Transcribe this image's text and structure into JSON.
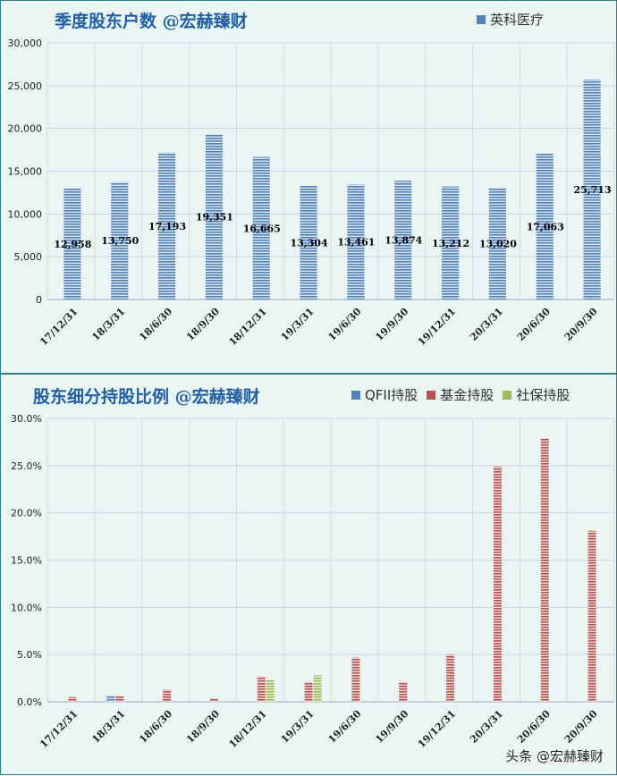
{
  "colors": {
    "blue": "#4f81bd",
    "red": "#c0504d",
    "green": "#9bbb59",
    "title": "#1f5fa8"
  },
  "chart_data": [
    {
      "type": "bar",
      "title": "季度股东户数 @宏赫臻财",
      "categories": [
        "17/12/31",
        "18/3/31",
        "18/6/30",
        "18/9/30",
        "18/12/31",
        "19/3/31",
        "19/6/30",
        "19/9/30",
        "19/12/31",
        "20/3/31",
        "20/6/30",
        "20/9/30"
      ],
      "series": [
        {
          "name": "英科医疗",
          "values": [
            12958,
            13750,
            17193,
            19351,
            16665,
            13304,
            13461,
            13874,
            13212,
            13020,
            17063,
            25713
          ]
        }
      ],
      "data_labels": [
        "12,958",
        "13,750",
        "17,193",
        "19,351",
        "16,665",
        "13,304",
        "13,461",
        "13,874",
        "13,212",
        "13,020",
        "17,063",
        "25,713"
      ],
      "yticks": [
        "0",
        "5,000",
        "10,000",
        "15,000",
        "20,000",
        "25,000",
        "30,000"
      ],
      "ylim": [
        0,
        30000
      ],
      "grid": true,
      "legend": "top-right"
    },
    {
      "type": "bar",
      "title": "股东细分持股比例 @宏赫臻财",
      "categories": [
        "17/12/31",
        "18/3/31",
        "18/6/30",
        "18/9/30",
        "18/12/31",
        "19/3/31",
        "19/6/30",
        "19/9/30",
        "19/12/31",
        "20/3/31",
        "20/6/30",
        "20/9/30"
      ],
      "series": [
        {
          "name": "QFII持股",
          "values": [
            0,
            0.7,
            0,
            0,
            0,
            0,
            0,
            0,
            0,
            0,
            0,
            0
          ]
        },
        {
          "name": "基金持股",
          "values": [
            0.5,
            0.6,
            1.3,
            0.4,
            2.7,
            2.1,
            4.7,
            2.1,
            5.0,
            24.9,
            27.9,
            18.1
          ]
        },
        {
          "name": "社保持股",
          "values": [
            0,
            0,
            0,
            0,
            2.3,
            2.8,
            0,
            0,
            0,
            0,
            0,
            0
          ]
        }
      ],
      "yticks": [
        "0.0%",
        "5.0%",
        "10.0%",
        "15.0%",
        "20.0%",
        "25.0%",
        "30.0%"
      ],
      "ylim": [
        0,
        30
      ],
      "grid": true,
      "legend": "top-right"
    }
  ],
  "watermark": "头条 @宏赫臻财"
}
